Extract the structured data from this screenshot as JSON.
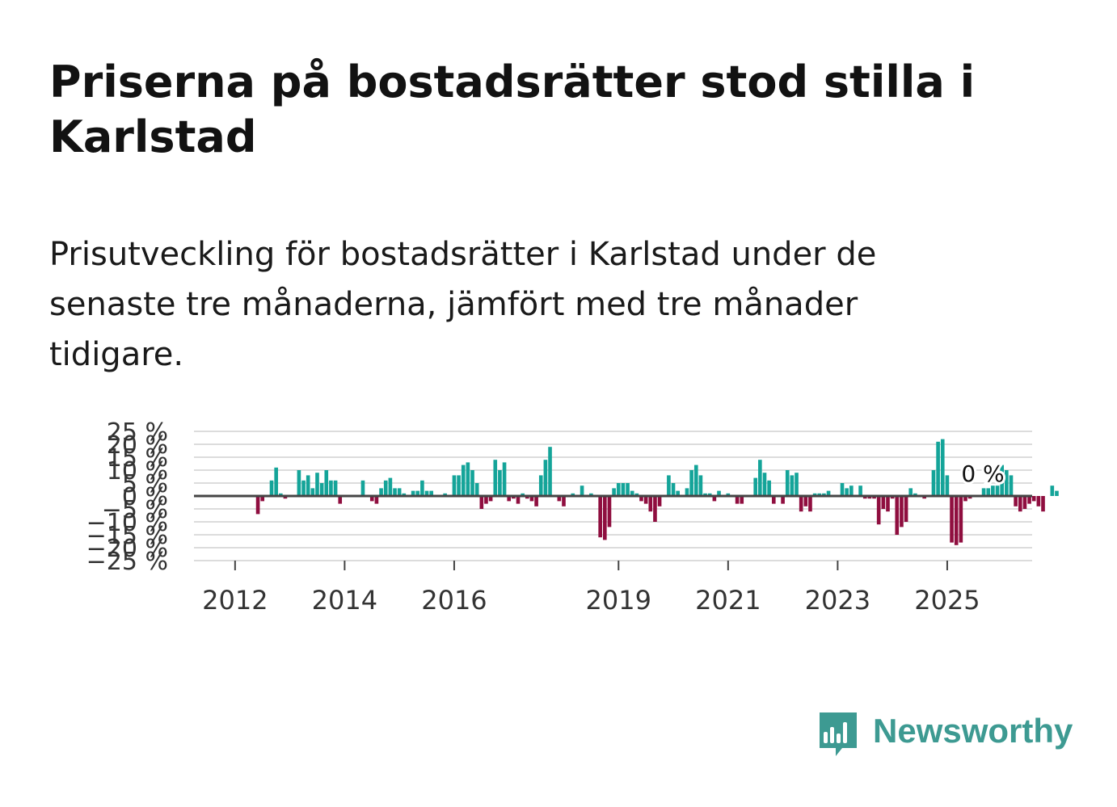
{
  "header": {
    "title": "Priserna på bostadsrätter stod stilla i Karlstad",
    "subtitle": "Prisutveckling för bostadsrätter i Karlstad under de senaste tre månaderna, jämfört med tre månader tidigare."
  },
  "brand": {
    "name": "Newsworthy",
    "color": "#3d9a92"
  },
  "colors": {
    "positive": "#14a499",
    "negative": "#8f0e3f",
    "grid": "#dcdcdc",
    "zero_line": "#444444",
    "tick_text": "#333333"
  },
  "chart_data": {
    "type": "bar",
    "title": "Priserna på bostadsrätter stod stilla i Karlstad",
    "xlabel": "",
    "ylabel": "",
    "ylim": [
      -25,
      25
    ],
    "yticks": [
      -25,
      -20,
      -15,
      -10,
      -5,
      0,
      5,
      10,
      15,
      20,
      25
    ],
    "ytick_labels": [
      "−25 %",
      "−20 %",
      "−15 %",
      "−10 %",
      "−5 %",
      "0 %",
      "5 %",
      "10 %",
      "15 %",
      "20 %",
      "25 %"
    ],
    "xticks": [
      2012,
      2014,
      2016,
      2019,
      2021,
      2023,
      2025
    ],
    "xrange": [
      2011.25,
      2026.55
    ],
    "grid": true,
    "annotation": {
      "text": "0 %",
      "x": 2025.65,
      "y": 0
    },
    "x_start": 2011.5,
    "step": 0.08333,
    "values": [
      0,
      0,
      0,
      0,
      0,
      0,
      0,
      0,
      0,
      0,
      0,
      -7,
      -2,
      0,
      6,
      11,
      1,
      -1,
      0,
      0,
      10,
      6,
      8,
      3,
      9,
      5,
      10,
      6,
      6,
      -3,
      0,
      0,
      0,
      0,
      6,
      0,
      -2,
      -3,
      3,
      6,
      7,
      3,
      3,
      1,
      0,
      2,
      2,
      6,
      2,
      2,
      0,
      0,
      1,
      0,
      8,
      8,
      12,
      13,
      10,
      5,
      -5,
      -3,
      -2,
      14,
      10,
      13,
      -2,
      -1,
      -3,
      1,
      -1,
      -2,
      -4,
      8,
      14,
      19,
      0,
      -2,
      -4,
      0,
      1,
      0,
      4,
      0,
      1,
      0,
      -16,
      -17,
      -12,
      3,
      5,
      5,
      5,
      2,
      1,
      -2,
      -3,
      -6,
      -10,
      -4,
      0,
      8,
      5,
      2,
      0,
      3,
      10,
      12,
      8,
      1,
      1,
      -2,
      2,
      0,
      1,
      0,
      -3,
      -3,
      0,
      0,
      7,
      14,
      9,
      6,
      -3,
      0,
      -3,
      10,
      8,
      9,
      -6,
      -4,
      -6,
      1,
      1,
      1,
      2,
      0,
      0,
      5,
      3,
      4,
      0,
      4,
      -1,
      -1,
      -1,
      -11,
      -5,
      -6,
      -1,
      -15,
      -12,
      -10,
      3,
      1,
      0,
      -1,
      0,
      10,
      21,
      22,
      8,
      -18,
      -19,
      -18,
      -2,
      -1,
      0,
      0,
      3,
      3,
      4,
      4,
      12,
      10,
      8,
      -4,
      -6,
      -5,
      -3,
      -2,
      -4,
      -6,
      0,
      4,
      2,
      0,
      0,
      0,
      0,
      0,
      0,
      0,
      0,
      0,
      0
    ]
  }
}
